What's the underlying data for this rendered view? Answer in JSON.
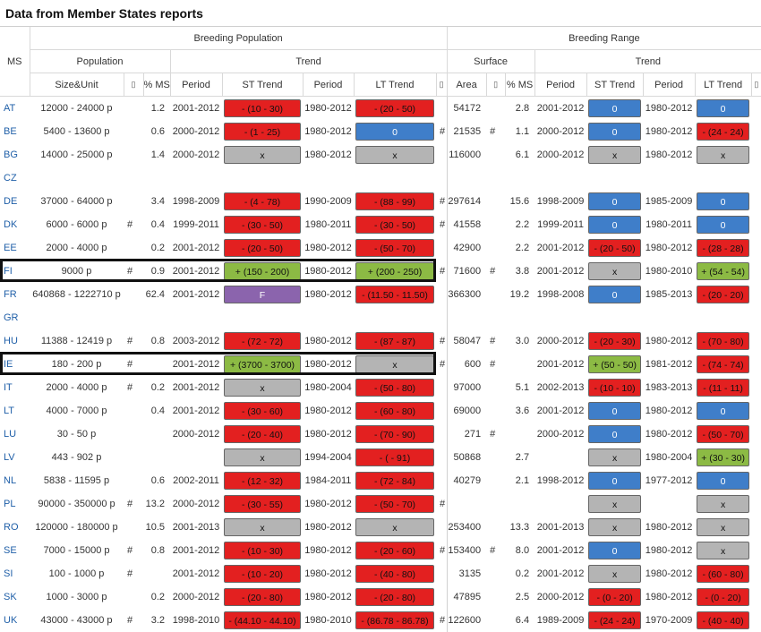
{
  "page_title": "Data from Member States reports",
  "headers": {
    "ms": "MS",
    "breeding_population": "Breeding Population",
    "breeding_range": "Breeding Range",
    "population": "Population",
    "trend": "Trend",
    "surface": "Surface",
    "trend2": "Trend",
    "size_unit": "Size&Unit",
    "sort": "▯",
    "pct_ms": "% MS",
    "period": "Period",
    "st_trend": "ST Trend",
    "lt_trend": "LT Trend",
    "area": "Area"
  },
  "colors": {
    "red": "#e32020",
    "blue": "#3f7ec9",
    "grey": "#b4b4b4",
    "green": "#8cba44",
    "purple": "#8b64ad"
  },
  "rows": [
    {
      "ms": "AT",
      "size": "12000 - 24000 p",
      "h1": "",
      "pct": "1.2",
      "p1": "2001-2012",
      "st": {
        "t": "- (10 - 30)",
        "c": "red"
      },
      "p2": "1980-2012",
      "lt": {
        "t": "- (20 - 50)",
        "c": "red"
      },
      "h2": "",
      "area": "54172",
      "h3": "",
      "pct2": "2.8",
      "p3": "2001-2012",
      "st2": {
        "t": "0",
        "c": "blue"
      },
      "p4": "1980-2012",
      "lt2": {
        "t": "0",
        "c": "blue"
      }
    },
    {
      "ms": "BE",
      "size": "5400 - 13600 p",
      "h1": "",
      "pct": "0.6",
      "p1": "2000-2012",
      "st": {
        "t": "- (1 - 25)",
        "c": "red"
      },
      "p2": "1980-2012",
      "lt": {
        "t": "0",
        "c": "blue"
      },
      "h2": "#",
      "area": "21535",
      "h3": "#",
      "pct2": "1.1",
      "p3": "2000-2012",
      "st2": {
        "t": "0",
        "c": "blue"
      },
      "p4": "1980-2012",
      "lt2": {
        "t": "- (24 - 24)",
        "c": "red"
      }
    },
    {
      "ms": "BG",
      "size": "14000 - 25000 p",
      "h1": "",
      "pct": "1.4",
      "p1": "2000-2012",
      "st": {
        "t": "x",
        "c": "grey"
      },
      "p2": "1980-2012",
      "lt": {
        "t": "x",
        "c": "grey"
      },
      "h2": "",
      "area": "116000",
      "h3": "",
      "pct2": "6.1",
      "p3": "2000-2012",
      "st2": {
        "t": "x",
        "c": "grey"
      },
      "p4": "1980-2012",
      "lt2": {
        "t": "x",
        "c": "grey"
      }
    },
    {
      "ms": "CZ",
      "size": "",
      "h1": "",
      "pct": "",
      "p1": "",
      "st": null,
      "p2": "",
      "lt": null,
      "h2": "",
      "area": "",
      "h3": "",
      "pct2": "",
      "p3": "",
      "st2": null,
      "p4": "",
      "lt2": null
    },
    {
      "ms": "DE",
      "size": "37000 - 64000 p",
      "h1": "",
      "pct": "3.4",
      "p1": "1998-2009",
      "st": {
        "t": "- (4 - 78)",
        "c": "red"
      },
      "p2": "1990-2009",
      "lt": {
        "t": "- (88 - 99)",
        "c": "red"
      },
      "h2": "#",
      "area": "297614",
      "h3": "",
      "pct2": "15.6",
      "p3": "1998-2009",
      "st2": {
        "t": "0",
        "c": "blue"
      },
      "p4": "1985-2009",
      "lt2": {
        "t": "0",
        "c": "blue"
      }
    },
    {
      "ms": "DK",
      "size": "6000 - 6000 p",
      "h1": "#",
      "pct": "0.4",
      "p1": "1999-2011",
      "st": {
        "t": "- (30 - 50)",
        "c": "red"
      },
      "p2": "1980-2011",
      "lt": {
        "t": "- (30 - 50)",
        "c": "red"
      },
      "h2": "#",
      "area": "41558",
      "h3": "",
      "pct2": "2.2",
      "p3": "1999-2011",
      "st2": {
        "t": "0",
        "c": "blue"
      },
      "p4": "1980-2011",
      "lt2": {
        "t": "0",
        "c": "blue"
      }
    },
    {
      "ms": "EE",
      "size": "2000 - 4000 p",
      "h1": "",
      "pct": "0.2",
      "p1": "2001-2012",
      "st": {
        "t": "- (20 - 50)",
        "c": "red"
      },
      "p2": "1980-2012",
      "lt": {
        "t": "- (50 - 70)",
        "c": "red"
      },
      "h2": "",
      "area": "42900",
      "h3": "",
      "pct2": "2.2",
      "p3": "2001-2012",
      "st2": {
        "t": "- (20 - 50)",
        "c": "red"
      },
      "p4": "1980-2012",
      "lt2": {
        "t": "- (28 - 28)",
        "c": "red"
      }
    },
    {
      "ms": "FI",
      "size": "9000 p",
      "h1": "#",
      "pct": "0.9",
      "p1": "2001-2012",
      "st": {
        "t": "+ (150 - 200)",
        "c": "green"
      },
      "p2": "1980-2012",
      "lt": {
        "t": "+ (200 - 250)",
        "c": "green"
      },
      "h2": "#",
      "area": "71600",
      "h3": "#",
      "pct2": "3.8",
      "p3": "2001-2012",
      "st2": {
        "t": "x",
        "c": "grey"
      },
      "p4": "1980-2010",
      "lt2": {
        "t": "+ (54 - 54)",
        "c": "green"
      }
    },
    {
      "ms": "FR",
      "size": "640868 - 1222710 p",
      "h1": "",
      "pct": "62.4",
      "p1": "2001-2012",
      "st": {
        "t": "F",
        "c": "purple"
      },
      "p2": "1980-2012",
      "lt": {
        "t": "- (11.50 - 11.50)",
        "c": "red"
      },
      "h2": "",
      "area": "366300",
      "h3": "",
      "pct2": "19.2",
      "p3": "1998-2008",
      "st2": {
        "t": "0",
        "c": "blue"
      },
      "p4": "1985-2013",
      "lt2": {
        "t": "- (20 - 20)",
        "c": "red"
      }
    },
    {
      "ms": "GR",
      "size": "",
      "h1": "",
      "pct": "",
      "p1": "",
      "st": null,
      "p2": "",
      "lt": null,
      "h2": "",
      "area": "",
      "h3": "",
      "pct2": "",
      "p3": "",
      "st2": null,
      "p4": "",
      "lt2": null
    },
    {
      "ms": "HU",
      "size": "11388 - 12419 p",
      "h1": "#",
      "pct": "0.8",
      "p1": "2003-2012",
      "st": {
        "t": "- (72 - 72)",
        "c": "red"
      },
      "p2": "1980-2012",
      "lt": {
        "t": "- (87 - 87)",
        "c": "red"
      },
      "h2": "#",
      "area": "58047",
      "h3": "#",
      "pct2": "3.0",
      "p3": "2000-2012",
      "st2": {
        "t": "- (20 - 30)",
        "c": "red"
      },
      "p4": "1980-2012",
      "lt2": {
        "t": "- (70 - 80)",
        "c": "red"
      }
    },
    {
      "ms": "IE",
      "size": "180 - 200 p",
      "h1": "#",
      "pct": "",
      "p1": "2001-2012",
      "st": {
        "t": "+ (3700 - 3700)",
        "c": "green"
      },
      "p2": "1980-2012",
      "lt": {
        "t": "x",
        "c": "grey"
      },
      "h2": "#",
      "area": "600",
      "h3": "#",
      "pct2": "",
      "p3": "2001-2012",
      "st2": {
        "t": "+ (50 - 50)",
        "c": "green"
      },
      "p4": "1981-2012",
      "lt2": {
        "t": "- (74 - 74)",
        "c": "red"
      }
    },
    {
      "ms": "IT",
      "size": "2000 - 4000 p",
      "h1": "#",
      "pct": "0.2",
      "p1": "2001-2012",
      "st": {
        "t": "x",
        "c": "grey"
      },
      "p2": "1980-2004",
      "lt": {
        "t": "- (50 - 80)",
        "c": "red"
      },
      "h2": "",
      "area": "97000",
      "h3": "",
      "pct2": "5.1",
      "p3": "2002-2013",
      "st2": {
        "t": "- (10 - 10)",
        "c": "red"
      },
      "p4": "1983-2013",
      "lt2": {
        "t": "- (11 - 11)",
        "c": "red"
      }
    },
    {
      "ms": "LT",
      "size": "4000 - 7000 p",
      "h1": "",
      "pct": "0.4",
      "p1": "2001-2012",
      "st": {
        "t": "- (30 - 60)",
        "c": "red"
      },
      "p2": "1980-2012",
      "lt": {
        "t": "- (60 - 80)",
        "c": "red"
      },
      "h2": "",
      "area": "69000",
      "h3": "",
      "pct2": "3.6",
      "p3": "2001-2012",
      "st2": {
        "t": "0",
        "c": "blue"
      },
      "p4": "1980-2012",
      "lt2": {
        "t": "0",
        "c": "blue"
      }
    },
    {
      "ms": "LU",
      "size": "30 - 50 p",
      "h1": "",
      "pct": "",
      "p1": "2000-2012",
      "st": {
        "t": "- (20 - 40)",
        "c": "red"
      },
      "p2": "1980-2012",
      "lt": {
        "t": "- (70 - 90)",
        "c": "red"
      },
      "h2": "",
      "area": "271",
      "h3": "#",
      "pct2": "",
      "p3": "2000-2012",
      "st2": {
        "t": "0",
        "c": "blue"
      },
      "p4": "1980-2012",
      "lt2": {
        "t": "- (50 - 70)",
        "c": "red"
      }
    },
    {
      "ms": "LV",
      "size": "443 - 902 p",
      "h1": "",
      "pct": "",
      "p1": "",
      "st": {
        "t": "x",
        "c": "grey"
      },
      "p2": "1994-2004",
      "lt": {
        "t": "- ( - 91)",
        "c": "red"
      },
      "h2": "",
      "area": "50868",
      "h3": "",
      "pct2": "2.7",
      "p3": "",
      "st2": {
        "t": "x",
        "c": "grey"
      },
      "p4": "1980-2004",
      "lt2": {
        "t": "+ (30 - 30)",
        "c": "green"
      }
    },
    {
      "ms": "NL",
      "size": "5838 - 11595 p",
      "h1": "",
      "pct": "0.6",
      "p1": "2002-2011",
      "st": {
        "t": "- (12 - 32)",
        "c": "red"
      },
      "p2": "1984-2011",
      "lt": {
        "t": "- (72 - 84)",
        "c": "red"
      },
      "h2": "",
      "area": "40279",
      "h3": "",
      "pct2": "2.1",
      "p3": "1998-2012",
      "st2": {
        "t": "0",
        "c": "blue"
      },
      "p4": "1977-2012",
      "lt2": {
        "t": "0",
        "c": "blue"
      }
    },
    {
      "ms": "PL",
      "size": "90000 - 350000 p",
      "h1": "#",
      "pct": "13.2",
      "p1": "2000-2012",
      "st": {
        "t": "- (30 - 55)",
        "c": "red"
      },
      "p2": "1980-2012",
      "lt": {
        "t": "- (50 - 70)",
        "c": "red"
      },
      "h2": "#",
      "area": "",
      "h3": "",
      "pct2": "",
      "p3": "",
      "st2": {
        "t": "x",
        "c": "grey"
      },
      "p4": "",
      "lt2": {
        "t": "x",
        "c": "grey"
      }
    },
    {
      "ms": "RO",
      "size": "120000 - 180000 p",
      "h1": "",
      "pct": "10.5",
      "p1": "2001-2013",
      "st": {
        "t": "x",
        "c": "grey"
      },
      "p2": "1980-2012",
      "lt": {
        "t": "x",
        "c": "grey"
      },
      "h2": "",
      "area": "253400",
      "h3": "",
      "pct2": "13.3",
      "p3": "2001-2013",
      "st2": {
        "t": "x",
        "c": "grey"
      },
      "p4": "1980-2012",
      "lt2": {
        "t": "x",
        "c": "grey"
      }
    },
    {
      "ms": "SE",
      "size": "7000 - 15000 p",
      "h1": "#",
      "pct": "0.8",
      "p1": "2001-2012",
      "st": {
        "t": "- (10 - 30)",
        "c": "red"
      },
      "p2": "1980-2012",
      "lt": {
        "t": "- (20 - 60)",
        "c": "red"
      },
      "h2": "#",
      "area": "153400",
      "h3": "#",
      "pct2": "8.0",
      "p3": "2001-2012",
      "st2": {
        "t": "0",
        "c": "blue"
      },
      "p4": "1980-2012",
      "lt2": {
        "t": "x",
        "c": "grey"
      }
    },
    {
      "ms": "SI",
      "size": "100 - 1000 p",
      "h1": "#",
      "pct": "",
      "p1": "2001-2012",
      "st": {
        "t": "- (10 - 20)",
        "c": "red"
      },
      "p2": "1980-2012",
      "lt": {
        "t": "- (40 - 80)",
        "c": "red"
      },
      "h2": "",
      "area": "3135",
      "h3": "",
      "pct2": "0.2",
      "p3": "2001-2012",
      "st2": {
        "t": "x",
        "c": "grey"
      },
      "p4": "1980-2012",
      "lt2": {
        "t": "- (60 - 80)",
        "c": "red"
      }
    },
    {
      "ms": "SK",
      "size": "1000 - 3000 p",
      "h1": "",
      "pct": "0.2",
      "p1": "2000-2012",
      "st": {
        "t": "- (20 - 80)",
        "c": "red"
      },
      "p2": "1980-2012",
      "lt": {
        "t": "- (20 - 80)",
        "c": "red"
      },
      "h2": "",
      "area": "47895",
      "h3": "",
      "pct2": "2.5",
      "p3": "2000-2012",
      "st2": {
        "t": "- (0 - 20)",
        "c": "red"
      },
      "p4": "1980-2012",
      "lt2": {
        "t": "- (0 - 20)",
        "c": "red"
      }
    },
    {
      "ms": "UK",
      "size": "43000 - 43000 p",
      "h1": "#",
      "pct": "3.2",
      "p1": "1998-2010",
      "st": {
        "t": "- (44.10 - 44.10)",
        "c": "red"
      },
      "p2": "1980-2010",
      "lt": {
        "t": "- (86.78 - 86.78)",
        "c": "red"
      },
      "h2": "#",
      "area": "122600",
      "h3": "",
      "pct2": "6.4",
      "p3": "1989-2009",
      "st2": {
        "t": "- (24 - 24)",
        "c": "red"
      },
      "p4": "1970-2009",
      "lt2": {
        "t": "- (40 - 40)",
        "c": "red"
      }
    }
  ]
}
